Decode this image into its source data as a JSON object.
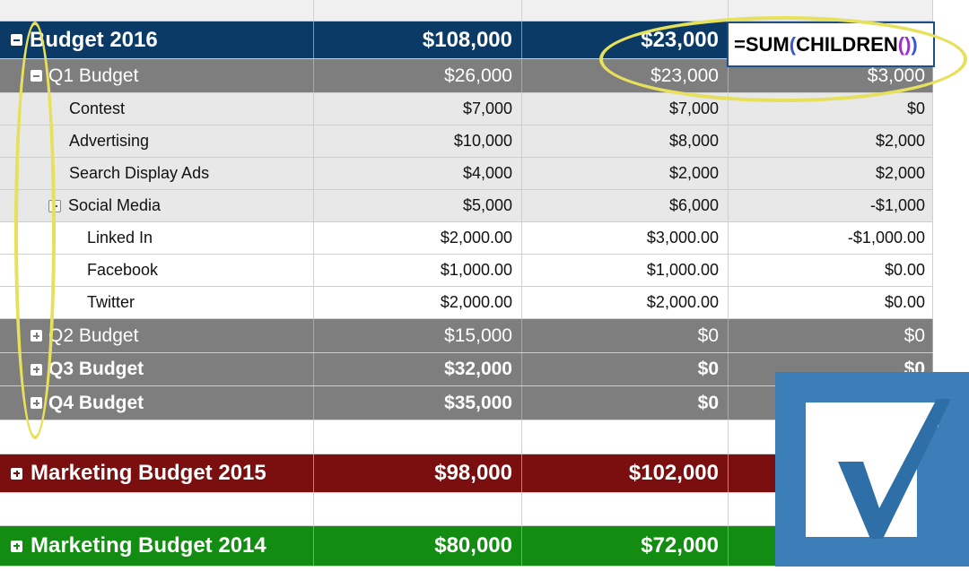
{
  "sheet": {
    "formula": {
      "prefix": "=SUM",
      "open_outer": "(",
      "func": "CHILDREN",
      "open_inner": "(",
      "close_inner": ")",
      "close_outer": ")"
    },
    "rows": [
      {
        "label": "Budget 2016",
        "c1": "$108,000",
        "c2": "$23,000",
        "c3": ""
      },
      {
        "label": "Q1 Budget",
        "c1": "$26,000",
        "c2": "$23,000",
        "c3": "$3,000"
      },
      {
        "label": "Contest",
        "c1": "$7,000",
        "c2": "$7,000",
        "c3": "$0"
      },
      {
        "label": "Advertising",
        "c1": "$10,000",
        "c2": "$8,000",
        "c3": "$2,000"
      },
      {
        "label": "Search Display Ads",
        "c1": "$4,000",
        "c2": "$2,000",
        "c3": "$2,000"
      },
      {
        "label": "Social Media",
        "c1": "$5,000",
        "c2": "$6,000",
        "c3": "-$1,000"
      },
      {
        "label": "Linked In",
        "c1": "$2,000.00",
        "c2": "$3,000.00",
        "c3": "-$1,000.00"
      },
      {
        "label": "Facebook",
        "c1": "$1,000.00",
        "c2": "$1,000.00",
        "c3": "$0.00"
      },
      {
        "label": "Twitter",
        "c1": "$2,000.00",
        "c2": "$2,000.00",
        "c3": "$0.00"
      },
      {
        "label": "Q2 Budget",
        "c1": "$15,000",
        "c2": "$0",
        "c3": "$0"
      },
      {
        "label": "Q3 Budget",
        "c1": "$32,000",
        "c2": "$0",
        "c3": "$0"
      },
      {
        "label": "Q4 Budget",
        "c1": "$35,000",
        "c2": "$0",
        "c3": ""
      },
      {
        "label": "Marketing Budget 2015",
        "c1": "$98,000",
        "c2": "$102,000",
        "c3": ""
      },
      {
        "label": "Marketing Budget 2014",
        "c1": "$80,000",
        "c2": "$72,000",
        "c3": ""
      }
    ]
  },
  "colors": {
    "budget_2016_header": "#0b3a66",
    "quarter_rows": "#7e7e7e",
    "marketing_2015": "#7b0e0e",
    "marketing_2014": "#128d12",
    "annotation": "#e6e05a",
    "logo": "#3c7fb8"
  },
  "icons": {
    "collapse": "minus-square-icon",
    "expand": "plus-square-icon",
    "logo": "smartsheet-checkmark-logo"
  }
}
